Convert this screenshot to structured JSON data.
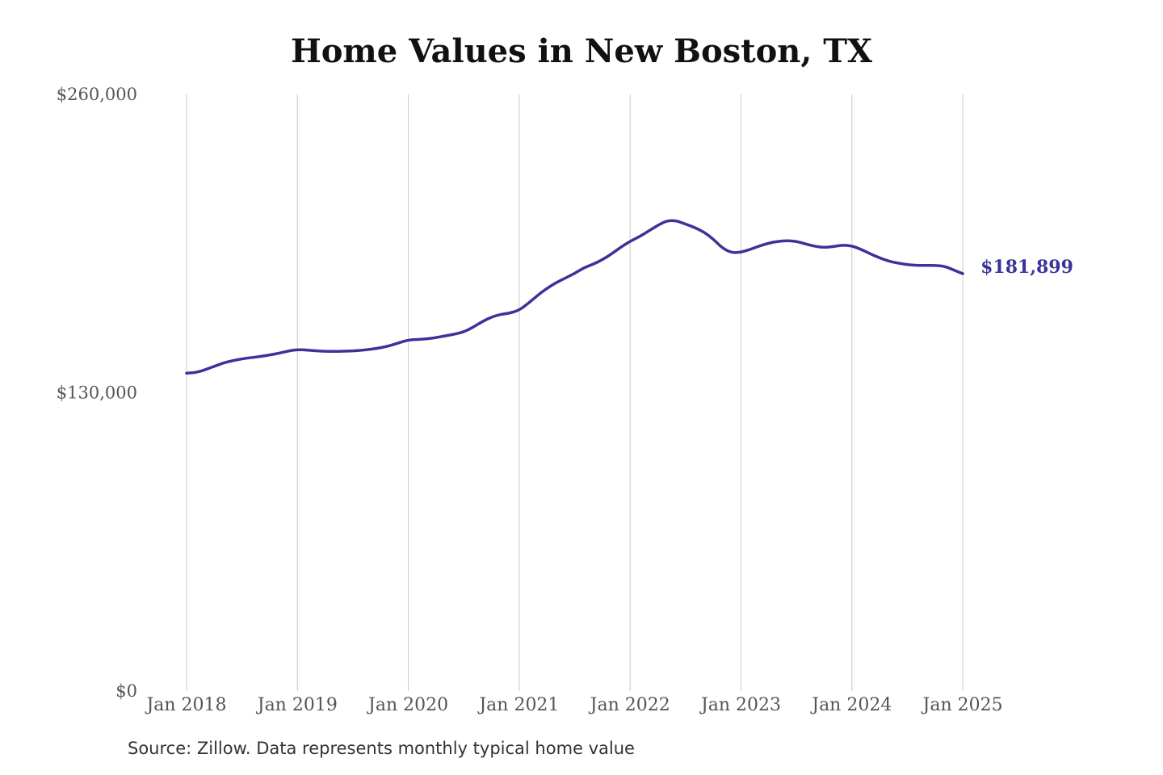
{
  "chart_data": {
    "type": "line",
    "title": "Home Values in New Boston, TX",
    "xlabel": "",
    "ylabel": "",
    "x_ticks": [
      "Jan 2018",
      "Jan 2019",
      "Jan 2020",
      "Jan 2021",
      "Jan 2022",
      "Jan 2023",
      "Jan 2024",
      "Jan 2025"
    ],
    "y_ticks": [
      "$0",
      "$130,000",
      "$260,000"
    ],
    "y_tick_values": [
      0,
      130000,
      260000
    ],
    "ylim": [
      0,
      260000
    ],
    "x_start": "2018-01",
    "grid": "vertical",
    "end_label": "$181,899",
    "colors": {
      "line": "#3b3399",
      "grid": "#c8c8c8",
      "tick_text": "#555555"
    },
    "series": [
      {
        "values": [
          138500,
          138800,
          140000,
          141500,
          143000,
          144000,
          144800,
          145300,
          145800,
          146500,
          147200,
          148200,
          148800,
          148600,
          148300,
          148000,
          148000,
          148100,
          148200,
          148500,
          149000,
          149600,
          150500,
          151800,
          153000,
          153200,
          153500,
          154000,
          154800,
          155500,
          156500,
          158500,
          161000,
          163000,
          164200,
          164700,
          166000,
          169000,
          172500,
          175500,
          178000,
          180000,
          182000,
          184500,
          186000,
          188000,
          190500,
          193500,
          196000,
          198000,
          200500,
          203000,
          205000,
          205000,
          203500,
          202000,
          200000,
          197000,
          193000,
          191000,
          191200,
          192500,
          194000,
          195200,
          196000,
          196300,
          196000,
          194800,
          193800,
          193300,
          193700,
          194400,
          194000,
          192500,
          190500,
          188800,
          187300,
          186500,
          185800,
          185500,
          185500,
          185500,
          185200,
          183500,
          181899
        ]
      }
    ]
  },
  "footer": {
    "source": "Source: Zillow. Data represents monthly typical home value"
  }
}
